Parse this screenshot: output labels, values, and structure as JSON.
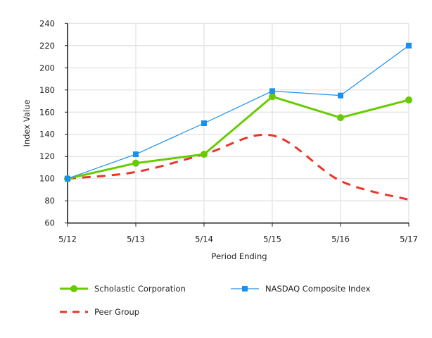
{
  "chart_data": {
    "type": "line",
    "xlabel": "Period Ending",
    "ylabel": "Index Value",
    "categories": [
      "5/12",
      "5/13",
      "5/14",
      "5/15",
      "5/16",
      "5/17"
    ],
    "ylim": [
      60,
      240
    ],
    "yticks": [
      60,
      80,
      100,
      120,
      140,
      160,
      180,
      200,
      220,
      240
    ],
    "grid": true,
    "legend_position": "bottom",
    "series": [
      {
        "name": "Scholastic Corporation",
        "values": [
          100,
          114,
          122,
          174,
          155,
          171
        ],
        "color": "#66cc00",
        "marker": "circle",
        "style": "solid"
      },
      {
        "name": "NASDAQ Composite Index",
        "values": [
          100,
          122,
          150,
          179,
          175,
          220
        ],
        "color": "#1a90f0",
        "marker": "square",
        "style": "solid"
      },
      {
        "name": "Peer Group",
        "values": [
          100,
          106,
          122,
          139,
          98,
          81
        ],
        "color": "#e8362a",
        "marker": "none",
        "style": "dashed"
      }
    ]
  }
}
